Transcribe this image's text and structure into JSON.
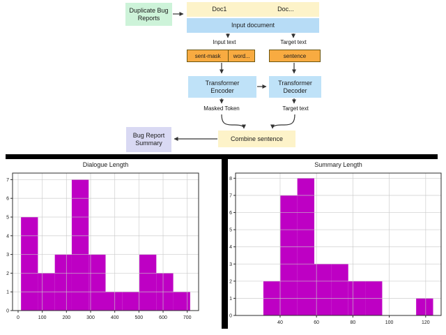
{
  "diagram": {
    "duplicate_bug_reports": "Duplicate Bug Reports",
    "doc1": "Doc1",
    "doc_ellipsis": "Doc...",
    "input_document": "Input document",
    "input_text": "Input text",
    "target_text_top": "Target text",
    "sent_mask": "sent-mask",
    "word_ellipsis": "word...",
    "sentence": "sentence",
    "transformer_encoder": "Transformer Encoder",
    "transformer_decoder": "Transformer Decoder",
    "masked_token": "Masked Token",
    "target_text_bottom": "Target text",
    "combine_sentence": "Combine sentence",
    "bug_report_summary": "Bug Report Summary",
    "colors": {
      "green_box": "#cdf3d9",
      "yellow_box": "#fdf3c9",
      "blue_box": "#b7dcf6",
      "light_blue_box": "#bfe2f8",
      "orange_box": "#f8ab41",
      "lavender_box": "#d9d9f3",
      "arrow": "#333333"
    }
  },
  "chart_data": [
    {
      "type": "bar",
      "subtype": "histogram",
      "title": "Dialogue Length",
      "bin_start": 12,
      "bin_width": 70,
      "counts": [
        5,
        2,
        3,
        7,
        3,
        1,
        1,
        3,
        2,
        1
      ],
      "xticks": [
        0,
        100,
        200,
        300,
        400,
        500,
        600,
        700
      ],
      "yticks": [
        0,
        1,
        2,
        3,
        4,
        5,
        6,
        7
      ],
      "xlim": [
        -23,
        747
      ],
      "ylim": [
        0,
        7.35
      ],
      "xlabel": "",
      "ylabel": "",
      "grid": true,
      "legend": false,
      "bar_color": "#be00c4"
    },
    {
      "type": "bar",
      "subtype": "histogram",
      "title": "Summary Length",
      "bin_start": 30.8,
      "bin_width": 9.33,
      "counts": [
        2,
        7,
        8,
        3,
        3,
        2,
        2,
        0,
        0,
        1
      ],
      "xticks": [
        40,
        60,
        80,
        100,
        120
      ],
      "yticks": [
        0,
        1,
        2,
        3,
        4,
        5,
        6,
        7,
        8
      ],
      "xlim": [
        15.5,
        128.5
      ],
      "ylim": [
        0,
        8.3
      ],
      "xlabel": "",
      "ylabel": "",
      "grid": true,
      "legend": false,
      "bar_color": "#be00c4"
    }
  ]
}
